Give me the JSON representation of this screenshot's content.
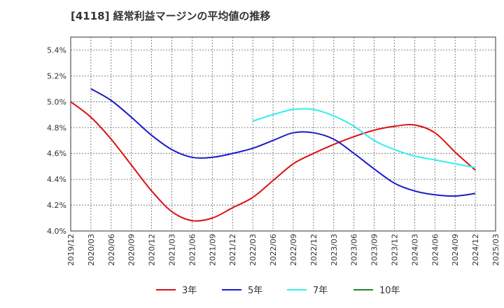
{
  "chart_data": {
    "type": "line",
    "title": "[4118]  経常利益マージンの平均値の推移",
    "xlabel": "",
    "ylabel": "",
    "x_ticks": [
      "2019/12",
      "2020/03",
      "2020/06",
      "2020/09",
      "2020/12",
      "2021/03",
      "2021/06",
      "2021/09",
      "2021/12",
      "2022/03",
      "2022/06",
      "2022/09",
      "2022/12",
      "2023/03",
      "2023/06",
      "2023/09",
      "2023/12",
      "2024/03",
      "2024/06",
      "2024/09",
      "2024/12",
      "2025/03"
    ],
    "y_ticks": [
      "4.0%",
      "4.2%",
      "4.4%",
      "4.6%",
      "4.8%",
      "5.0%",
      "5.2%",
      "5.4%"
    ],
    "ylim": [
      4.0,
      5.5
    ],
    "grid": true,
    "legend_position": "bottom",
    "series": [
      {
        "name": "3年",
        "color": "#dd1111",
        "x": [
          "2019/12",
          "2020/03",
          "2020/06",
          "2020/09",
          "2020/12",
          "2021/03",
          "2021/06",
          "2021/09",
          "2021/12",
          "2022/03",
          "2022/06",
          "2022/09",
          "2022/12",
          "2023/03",
          "2023/06",
          "2023/09",
          "2023/12",
          "2024/03",
          "2024/06",
          "2024/09",
          "2024/12"
        ],
        "values": [
          5.0,
          4.88,
          4.71,
          4.51,
          4.31,
          4.15,
          4.08,
          4.1,
          4.18,
          4.26,
          4.39,
          4.52,
          4.6,
          4.67,
          4.73,
          4.78,
          4.81,
          4.82,
          4.76,
          4.61,
          4.47
        ]
      },
      {
        "name": "5年",
        "color": "#1a1acc",
        "x": [
          "2020/03",
          "2020/06",
          "2020/09",
          "2020/12",
          "2021/03",
          "2021/06",
          "2021/09",
          "2021/12",
          "2022/03",
          "2022/06",
          "2022/09",
          "2022/12",
          "2023/03",
          "2023/06",
          "2023/09",
          "2023/12",
          "2024/03",
          "2024/06",
          "2024/09",
          "2024/12"
        ],
        "values": [
          5.1,
          5.01,
          4.88,
          4.74,
          4.63,
          4.57,
          4.57,
          4.6,
          4.64,
          4.7,
          4.76,
          4.76,
          4.71,
          4.6,
          4.48,
          4.37,
          4.31,
          4.28,
          4.27,
          4.29
        ]
      },
      {
        "name": "7年",
        "color": "#33eeee",
        "x": [
          "2022/03",
          "2022/06",
          "2022/09",
          "2022/12",
          "2023/03",
          "2023/06",
          "2023/09",
          "2023/12",
          "2024/03",
          "2024/06",
          "2024/09",
          "2024/12"
        ],
        "values": [
          4.85,
          4.9,
          4.94,
          4.94,
          4.89,
          4.81,
          4.7,
          4.63,
          4.58,
          4.55,
          4.52,
          4.49
        ]
      },
      {
        "name": "10年",
        "color": "#228822",
        "x": [],
        "values": []
      }
    ]
  }
}
